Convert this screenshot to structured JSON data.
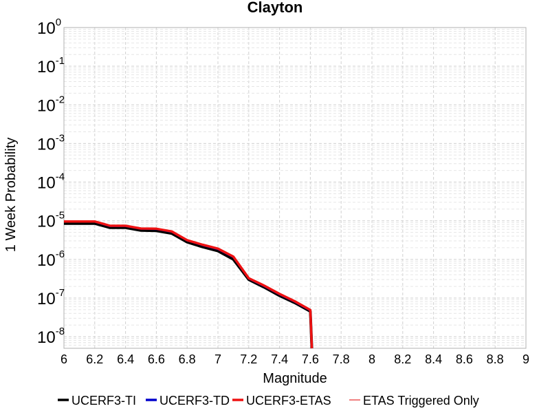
{
  "chart_data": {
    "type": "line",
    "title": "Clayton",
    "xlabel": "Magnitude",
    "ylabel": "1 Week Probability",
    "xlim": [
      6,
      9
    ],
    "ylim": [
      5e-09,
      1
    ],
    "yscale": "log",
    "grid": true,
    "legend_position": "bottom",
    "x_ticks": [
      "6",
      "6.2",
      "6.4",
      "6.6",
      "6.8",
      "7",
      "7.2",
      "7.4",
      "7.6",
      "7.8",
      "8",
      "8.2",
      "8.4",
      "8.6",
      "8.8",
      "9"
    ],
    "y_tick_base": "10",
    "y_tick_exponents": [
      "0",
      "-1",
      "-2",
      "-3",
      "-4",
      "-5",
      "-6",
      "-7",
      "-8"
    ],
    "series": [
      {
        "name": "UCERF3-TI",
        "color": "#000000",
        "x": [
          6.0,
          6.1,
          6.2,
          6.3,
          6.4,
          6.5,
          6.6,
          6.7,
          6.8,
          6.9,
          7.0,
          7.1,
          7.2,
          7.3,
          7.4,
          7.5,
          7.6,
          7.61
        ],
        "y": [
          8.5e-06,
          8.5e-06,
          8.5e-06,
          6.6e-06,
          6.6e-06,
          5.6e-06,
          5.5e-06,
          4.7e-06,
          2.8e-06,
          2.1e-06,
          1.65e-06,
          1e-06,
          3e-07,
          1.9e-07,
          1.15e-07,
          7.5e-08,
          4.5e-08,
          4e-09
        ]
      },
      {
        "name": "UCERF3-TD",
        "color": "#0000cc",
        "x": [
          6.0,
          6.1,
          6.2,
          6.3,
          6.4,
          6.5,
          6.6,
          6.7,
          6.8,
          6.9,
          7.0,
          7.1,
          7.2,
          7.3,
          7.4,
          7.5,
          7.6,
          7.61
        ],
        "y": [
          9.5e-06,
          9.5e-06,
          9.5e-06,
          7.3e-06,
          7.3e-06,
          6.2e-06,
          6.1e-06,
          5.2e-06,
          3.1e-06,
          2.35e-06,
          1.85e-06,
          1.15e-06,
          3.2e-07,
          2.05e-07,
          1.25e-07,
          8e-08,
          4.8e-08,
          4e-09
        ]
      },
      {
        "name": "UCERF3-ETAS",
        "color": "#ee1111",
        "x": [
          6.0,
          6.1,
          6.2,
          6.3,
          6.4,
          6.5,
          6.6,
          6.7,
          6.8,
          6.9,
          7.0,
          7.1,
          7.2,
          7.3,
          7.4,
          7.5,
          7.6,
          7.61
        ],
        "y": [
          9.6e-06,
          9.6e-06,
          9.6e-06,
          7.4e-06,
          7.4e-06,
          6.3e-06,
          6.2e-06,
          5.3e-06,
          3.15e-06,
          2.4e-06,
          1.9e-06,
          1.18e-06,
          3.25e-07,
          2.1e-07,
          1.28e-07,
          8.2e-08,
          4.9e-08,
          4e-09
        ]
      },
      {
        "name": "ETAS Triggered Only",
        "color": "#f08080",
        "x": [],
        "y": []
      }
    ]
  }
}
